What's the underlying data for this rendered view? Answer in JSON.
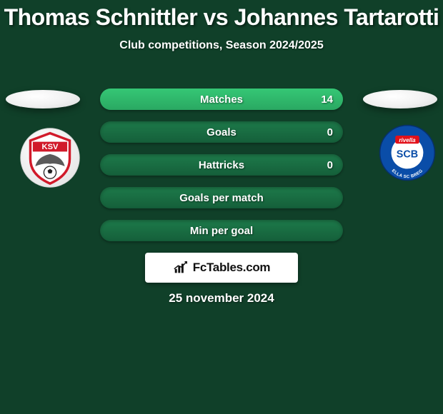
{
  "title": "Thomas Schnittler vs Johannes Tartarotti",
  "subtitle": "Club competitions, Season 2024/2025",
  "date": "25 november 2024",
  "brand": "FcTables.com",
  "background_color": "#104029",
  "bar_track_color": "#1d7a4a",
  "bar_fill_color": "#2aa862",
  "bar_highlight_color": "#35c775",
  "stats": [
    {
      "label": "Matches",
      "value": "14",
      "fill_pct": 100
    },
    {
      "label": "Goals",
      "value": "0",
      "fill_pct": 0
    },
    {
      "label": "Hattricks",
      "value": "0",
      "fill_pct": 0
    },
    {
      "label": "Goals per match",
      "value": "",
      "fill_pct": 0
    },
    {
      "label": "Min per goal",
      "value": "",
      "fill_pct": 0
    }
  ],
  "left_team": {
    "abbr": "KSV",
    "primary": "#d11a2a",
    "secondary": "#ffffff"
  },
  "right_team": {
    "abbr": "SCB",
    "primary": "#0a4da8",
    "accent": "#e2111a",
    "secondary": "#ffffff"
  }
}
